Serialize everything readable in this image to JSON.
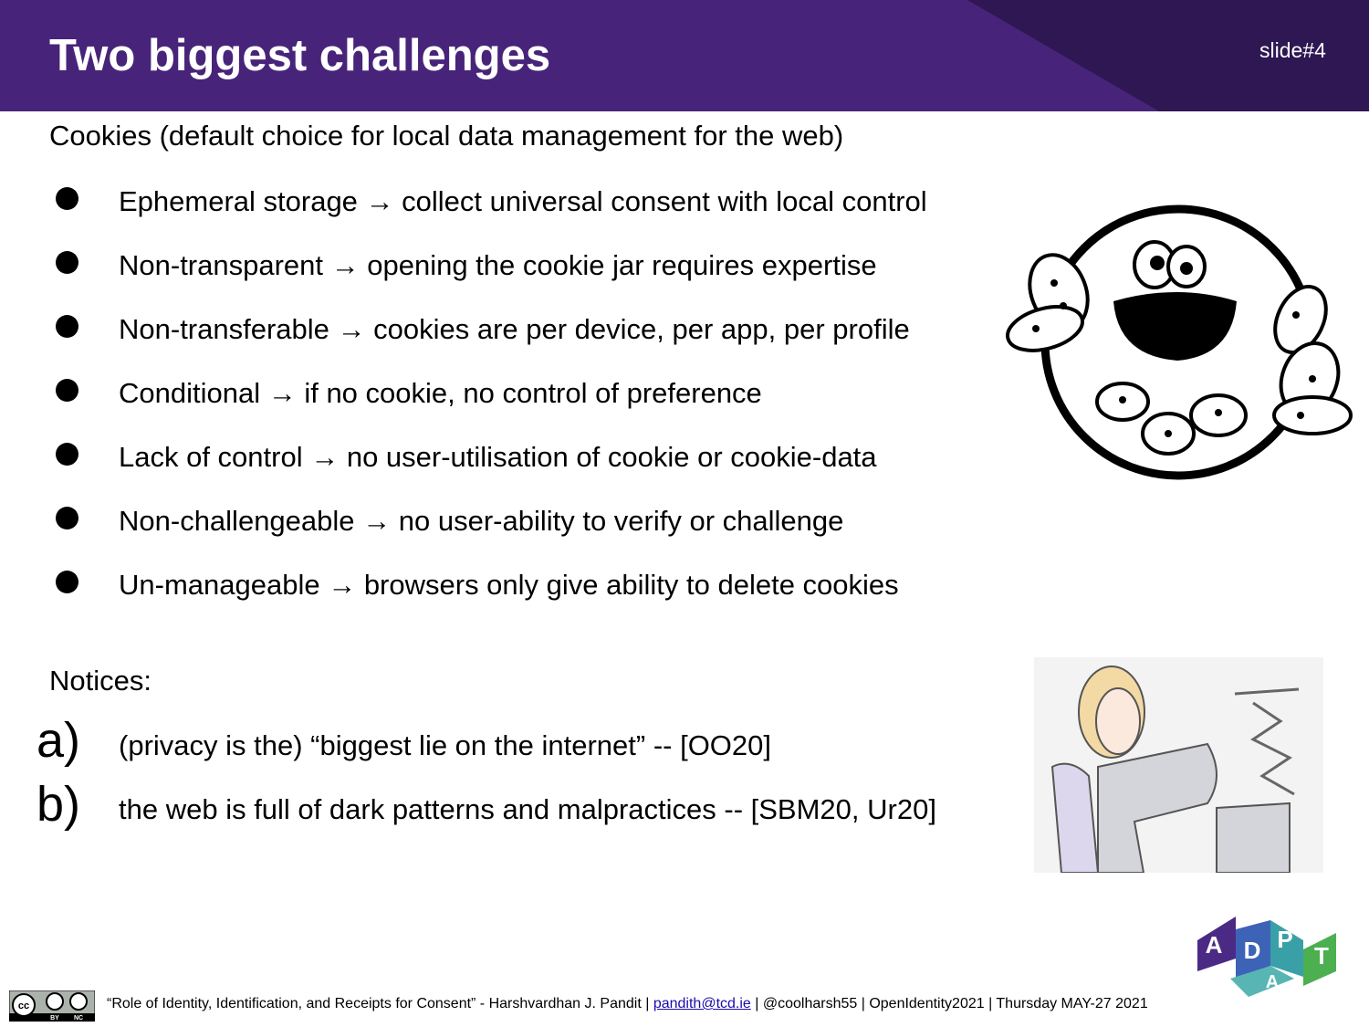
{
  "header": {
    "title": "Two biggest challenges",
    "slide_number": "slide#4"
  },
  "cookies": {
    "intro": "Cookies (default choice for local data management for the web)",
    "bullets": [
      "Ephemeral storage → collect universal consent with local control",
      "Non-transparent → opening the cookie jar requires expertise",
      "Non-transferable → cookies are per device, per app, per profile",
      "Conditional → if no cookie, no control of preference",
      "Lack of control → no user-utilisation of cookie or cookie-data",
      "Non-challengeable → no user-ability to verify or challenge",
      "Un-manageable → browsers only give ability to delete cookies"
    ]
  },
  "notices": {
    "heading": "Notices:",
    "items": [
      {
        "marker": "a)",
        "text": "(privacy is the) “biggest lie on the internet” -- [OO20]"
      },
      {
        "marker": "b)",
        "text": "the web is full of dark patterns and malpractices -- [SBM20, Ur20]"
      }
    ]
  },
  "footer": {
    "before": "“Role of Identity, Identification, and Receipts for Consent” - Harshvardhan J. Pandit | ",
    "link": "pandith@tcd.ie",
    "after": " | @coolharsh55 | OpenIdentity2021 | Thursday MAY-27 2021",
    "license": {
      "cc": "cc",
      "by": "BY",
      "nc": "NC"
    }
  },
  "logo": {
    "letters": [
      "A",
      "D",
      "P",
      "A",
      "T"
    ]
  }
}
